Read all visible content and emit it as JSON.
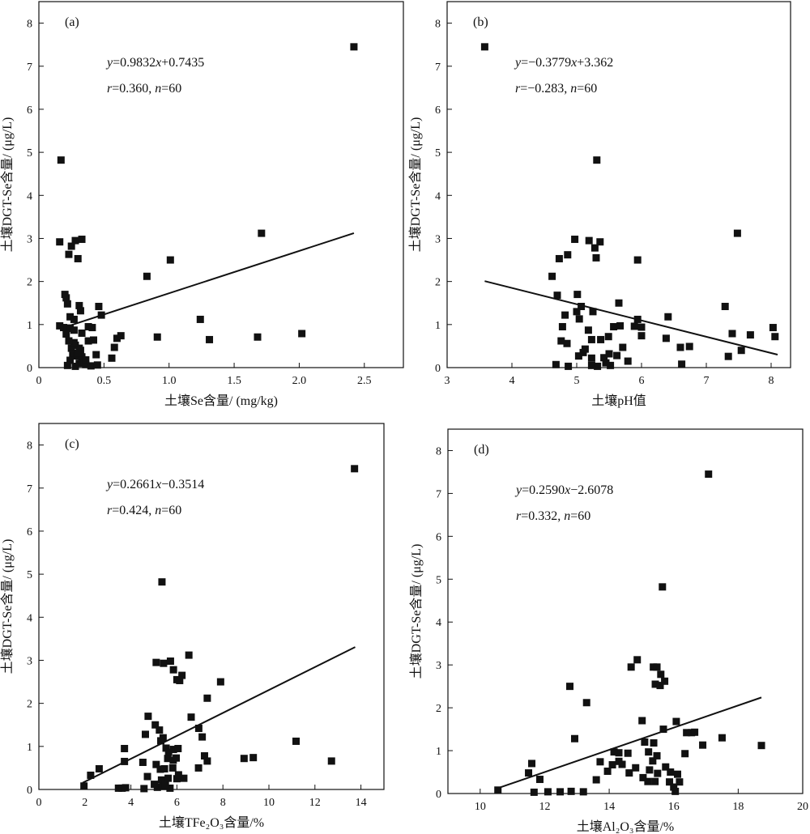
{
  "chart_data": [
    {
      "type": "scatter",
      "panel": "(a)",
      "xlabel": "土壤Se含量/ (mg/kg)",
      "ylabel": "土壤DGT-Se含量/ (μg/L)",
      "xlim": [
        0,
        2.8
      ],
      "ylim": [
        0,
        8.5
      ],
      "xticks": [
        0,
        0.5,
        1.0,
        1.5,
        2.0,
        2.5
      ],
      "xtick_labels": [
        "0",
        "0.5",
        "1.0",
        "1.5",
        "2.0",
        "2.5"
      ],
      "yticks": [
        0,
        1,
        2,
        3,
        4,
        5,
        6,
        7,
        8
      ],
      "ytick_labels": [
        "0",
        "1",
        "2",
        "3",
        "4",
        "5",
        "6",
        "7",
        "8"
      ],
      "annotation": {
        "equation": "y=0.9832x+0.7435",
        "stats": "r=0.360, n=60"
      },
      "fit_line": {
        "slope": 0.9832,
        "intercept": 0.7435,
        "x_range": [
          0.25,
          2.42
        ]
      },
      "points": [
        [
          0.17,
          4.82
        ],
        [
          2.42,
          7.45
        ],
        [
          0.16,
          2.92
        ],
        [
          0.25,
          2.82
        ],
        [
          0.28,
          2.95
        ],
        [
          0.33,
          2.98
        ],
        [
          0.23,
          2.63
        ],
        [
          0.3,
          2.53
        ],
        [
          1.71,
          3.12
        ],
        [
          1.01,
          2.5
        ],
        [
          0.83,
          2.12
        ],
        [
          0.2,
          1.7
        ],
        [
          0.21,
          1.62
        ],
        [
          0.22,
          1.48
        ],
        [
          0.31,
          1.44
        ],
        [
          0.32,
          1.32
        ],
        [
          0.46,
          1.42
        ],
        [
          0.48,
          1.22
        ],
        [
          0.24,
          1.18
        ],
        [
          0.27,
          1.12
        ],
        [
          0.16,
          0.97
        ],
        [
          0.19,
          0.93
        ],
        [
          0.22,
          0.91
        ],
        [
          0.24,
          0.92
        ],
        [
          0.27,
          0.87
        ],
        [
          0.21,
          0.78
        ],
        [
          0.38,
          0.95
        ],
        [
          0.41,
          0.93
        ],
        [
          0.33,
          0.8
        ],
        [
          0.38,
          0.62
        ],
        [
          0.42,
          0.64
        ],
        [
          0.28,
          0.52
        ],
        [
          0.31,
          0.45
        ],
        [
          0.32,
          0.4
        ],
        [
          0.25,
          0.45
        ],
        [
          0.26,
          0.32
        ],
        [
          0.29,
          0.27
        ],
        [
          0.33,
          0.25
        ],
        [
          0.24,
          0.17
        ],
        [
          0.31,
          0.1
        ],
        [
          0.36,
          0.07
        ],
        [
          0.28,
          0.03
        ],
        [
          0.4,
          0.04
        ],
        [
          0.22,
          0.05
        ],
        [
          0.45,
          0.06
        ],
        [
          0.6,
          0.68
        ],
        [
          0.63,
          0.74
        ],
        [
          0.58,
          0.47
        ],
        [
          0.56,
          0.22
        ],
        [
          0.91,
          0.71
        ],
        [
          1.24,
          1.12
        ],
        [
          1.31,
          0.65
        ],
        [
          1.68,
          0.71
        ],
        [
          2.02,
          0.79
        ],
        [
          0.35,
          0.13
        ],
        [
          0.27,
          0.58
        ],
        [
          0.44,
          0.3
        ],
        [
          0.3,
          0.33
        ],
        [
          0.36,
          0.18
        ],
        [
          0.23,
          0.62
        ]
      ]
    },
    {
      "type": "scatter",
      "panel": "(b)",
      "xlabel": "土壤pH值",
      "ylabel": "土壤DGT-Se含量/ (μg/L)",
      "xlim": [
        3,
        8.3
      ],
      "ylim": [
        0,
        8.5
      ],
      "xticks": [
        3,
        4,
        5,
        6,
        7,
        8
      ],
      "xtick_labels": [
        "3",
        "4",
        "5",
        "6",
        "7",
        "8"
      ],
      "yticks": [
        0,
        1,
        2,
        3,
        4,
        5,
        6,
        7,
        8
      ],
      "ytick_labels": [
        "0",
        "1",
        "2",
        "3",
        "4",
        "5",
        "6",
        "7",
        "8"
      ],
      "annotation": {
        "equation": "y=−0.3779x+3.362",
        "stats": "r=−0.283, n=60"
      },
      "fit_line": {
        "slope": -0.3779,
        "intercept": 3.362,
        "x_range": [
          3.58,
          8.1
        ]
      },
      "points": [
        [
          3.58,
          7.45
        ],
        [
          5.31,
          4.82
        ],
        [
          7.48,
          3.12
        ],
        [
          4.97,
          2.98
        ],
        [
          5.19,
          2.95
        ],
        [
          5.36,
          2.92
        ],
        [
          5.28,
          2.78
        ],
        [
          4.86,
          2.62
        ],
        [
          4.73,
          2.53
        ],
        [
          5.3,
          2.55
        ],
        [
          5.94,
          2.5
        ],
        [
          4.62,
          2.12
        ],
        [
          5.01,
          1.7
        ],
        [
          4.7,
          1.68
        ],
        [
          5.65,
          1.5
        ],
        [
          5.07,
          1.42
        ],
        [
          7.29,
          1.42
        ],
        [
          5.0,
          1.3
        ],
        [
          5.25,
          1.3
        ],
        [
          4.82,
          1.22
        ],
        [
          6.41,
          1.18
        ],
        [
          5.94,
          1.12
        ],
        [
          5.04,
          1.13
        ],
        [
          4.78,
          0.95
        ],
        [
          5.57,
          0.95
        ],
        [
          5.67,
          0.97
        ],
        [
          6.0,
          0.94
        ],
        [
          7.4,
          0.79
        ],
        [
          7.68,
          0.76
        ],
        [
          8.03,
          0.93
        ],
        [
          8.06,
          0.72
        ],
        [
          5.18,
          0.87
        ],
        [
          5.89,
          0.96
        ],
        [
          6.0,
          0.74
        ],
        [
          6.38,
          0.68
        ],
        [
          5.23,
          0.65
        ],
        [
          5.37,
          0.65
        ],
        [
          5.49,
          0.72
        ],
        [
          4.76,
          0.62
        ],
        [
          4.85,
          0.56
        ],
        [
          6.6,
          0.47
        ],
        [
          6.74,
          0.49
        ],
        [
          7.54,
          0.4
        ],
        [
          7.34,
          0.26
        ],
        [
          5.71,
          0.47
        ],
        [
          5.5,
          0.32
        ],
        [
          5.1,
          0.35
        ],
        [
          5.03,
          0.27
        ],
        [
          5.23,
          0.22
        ],
        [
          5.42,
          0.23
        ],
        [
          5.62,
          0.28
        ],
        [
          4.68,
          0.07
        ],
        [
          4.87,
          0.03
        ],
        [
          5.23,
          0.05
        ],
        [
          5.32,
          0.03
        ],
        [
          5.52,
          0.05
        ],
        [
          6.62,
          0.08
        ],
        [
          5.13,
          0.43
        ],
        [
          5.79,
          0.15
        ],
        [
          5.45,
          0.11
        ]
      ]
    },
    {
      "type": "scatter",
      "panel": "(c)",
      "xlabel": "土壤TFe₂O₃含量/%",
      "ylabel": "土壤DGT-Se含量/ (μg/L)",
      "xlim": [
        0,
        15
      ],
      "ylim": [
        0,
        8.5
      ],
      "xticks": [
        0,
        2,
        4,
        6,
        8,
        10,
        12,
        14
      ],
      "xtick_labels": [
        "0",
        "2",
        "4",
        "6",
        "8",
        "10",
        "12",
        "14"
      ],
      "yticks": [
        0,
        1,
        2,
        3,
        4,
        5,
        6,
        7,
        8
      ],
      "ytick_labels": [
        "0",
        "1",
        "2",
        "3",
        "4",
        "5",
        "6",
        "7",
        "8"
      ],
      "annotation": {
        "equation": "y=0.2661x−0.3514",
        "stats": "r=0.424, n=60"
      },
      "fit_line": {
        "slope": 0.2661,
        "intercept": -0.3514,
        "x_range": [
          1.9,
          13.75
        ]
      },
      "points": [
        [
          13.72,
          7.45
        ],
        [
          5.35,
          4.82
        ],
        [
          6.52,
          3.12
        ],
        [
          5.1,
          2.95
        ],
        [
          5.42,
          2.93
        ],
        [
          5.72,
          2.98
        ],
        [
          5.85,
          2.78
        ],
        [
          6.22,
          2.65
        ],
        [
          6.0,
          2.55
        ],
        [
          7.9,
          2.5
        ],
        [
          6.12,
          2.53
        ],
        [
          7.32,
          2.12
        ],
        [
          4.75,
          1.7
        ],
        [
          6.62,
          1.68
        ],
        [
          5.06,
          1.5
        ],
        [
          6.95,
          1.42
        ],
        [
          4.63,
          1.28
        ],
        [
          5.24,
          1.38
        ],
        [
          5.4,
          1.2
        ],
        [
          7.1,
          1.22
        ],
        [
          5.3,
          1.13
        ],
        [
          11.18,
          1.12
        ],
        [
          3.72,
          0.95
        ],
        [
          5.53,
          0.96
        ],
        [
          5.85,
          0.93
        ],
        [
          6.05,
          0.95
        ],
        [
          5.64,
          0.86
        ],
        [
          9.32,
          0.74
        ],
        [
          8.92,
          0.72
        ],
        [
          7.2,
          0.78
        ],
        [
          7.32,
          0.66
        ],
        [
          12.72,
          0.66
        ],
        [
          3.72,
          0.65
        ],
        [
          4.52,
          0.63
        ],
        [
          5.6,
          0.72
        ],
        [
          5.97,
          0.73
        ],
        [
          2.62,
          0.48
        ],
        [
          5.28,
          0.47
        ],
        [
          5.46,
          0.48
        ],
        [
          5.82,
          0.5
        ],
        [
          6.94,
          0.5
        ],
        [
          2.25,
          0.33
        ],
        [
          4.72,
          0.3
        ],
        [
          5.33,
          0.22
        ],
        [
          5.62,
          0.26
        ],
        [
          6.0,
          0.25
        ],
        [
          6.3,
          0.26
        ],
        [
          1.96,
          0.08
        ],
        [
          3.46,
          0.03
        ],
        [
          3.62,
          0.03
        ],
        [
          3.77,
          0.04
        ],
        [
          4.57,
          0.02
        ],
        [
          5.15,
          0.05
        ],
        [
          5.4,
          0.07
        ],
        [
          5.7,
          0.03
        ],
        [
          5.02,
          0.12
        ],
        [
          5.84,
          0.68
        ],
        [
          5.5,
          0.12
        ],
        [
          6.07,
          0.34
        ],
        [
          5.1,
          0.58
        ]
      ]
    },
    {
      "type": "scatter",
      "panel": "(d)",
      "xlabel": "土壤Al₂O₃含量/%",
      "ylabel": "土壤DGT-Se含量/ (μg/L)",
      "xlim": [
        9,
        20
      ],
      "ylim": [
        0,
        8.5
      ],
      "xticks": [
        10,
        12,
        14,
        16,
        18,
        20
      ],
      "xtick_labels": [
        "10",
        "12",
        "14",
        "16",
        "18",
        "20"
      ],
      "yticks": [
        0,
        1,
        2,
        3,
        4,
        5,
        6,
        7,
        8
      ],
      "ytick_labels": [
        "0",
        "1",
        "2",
        "3",
        "4",
        "5",
        "6",
        "7",
        "8"
      ],
      "annotation": {
        "equation": "y=0.2590x−2.6078",
        "stats": "r=0.332, n=60"
      },
      "fit_line": {
        "slope": 0.259,
        "intercept": -2.6078,
        "x_range": [
          10.5,
          18.72
        ]
      },
      "points": [
        [
          17.08,
          7.45
        ],
        [
          15.65,
          4.82
        ],
        [
          14.87,
          3.12
        ],
        [
          14.68,
          2.95
        ],
        [
          15.37,
          2.95
        ],
        [
          15.48,
          2.95
        ],
        [
          15.6,
          2.78
        ],
        [
          15.72,
          2.62
        ],
        [
          15.43,
          2.55
        ],
        [
          15.58,
          2.52
        ],
        [
          12.78,
          2.5
        ],
        [
          13.3,
          2.12
        ],
        [
          15.02,
          1.7
        ],
        [
          16.08,
          1.68
        ],
        [
          15.68,
          1.5
        ],
        [
          16.55,
          1.42
        ],
        [
          16.65,
          1.43
        ],
        [
          16.4,
          1.42
        ],
        [
          17.5,
          1.3
        ],
        [
          12.93,
          1.28
        ],
        [
          15.1,
          1.2
        ],
        [
          15.38,
          1.18
        ],
        [
          18.72,
          1.12
        ],
        [
          16.9,
          1.13
        ],
        [
          14.3,
          0.95
        ],
        [
          14.15,
          0.97
        ],
        [
          14.58,
          0.94
        ],
        [
          15.22,
          0.97
        ],
        [
          16.35,
          0.93
        ],
        [
          13.72,
          0.74
        ],
        [
          14.3,
          0.75
        ],
        [
          14.1,
          0.67
        ],
        [
          14.4,
          0.68
        ],
        [
          11.6,
          0.7
        ],
        [
          15.48,
          0.88
        ],
        [
          15.35,
          0.76
        ],
        [
          13.95,
          0.52
        ],
        [
          15.75,
          0.62
        ],
        [
          15.9,
          0.5
        ],
        [
          11.5,
          0.48
        ],
        [
          16.12,
          0.45
        ],
        [
          14.62,
          0.48
        ],
        [
          13.6,
          0.32
        ],
        [
          11.85,
          0.33
        ],
        [
          15.42,
          0.28
        ],
        [
          15.87,
          0.27
        ],
        [
          16.18,
          0.27
        ],
        [
          15.2,
          0.28
        ],
        [
          10.55,
          0.08
        ],
        [
          11.67,
          0.03
        ],
        [
          12.1,
          0.04
        ],
        [
          12.48,
          0.04
        ],
        [
          12.82,
          0.05
        ],
        [
          13.2,
          0.04
        ],
        [
          16.05,
          0.05
        ],
        [
          15.05,
          0.37
        ],
        [
          15.5,
          0.47
        ],
        [
          14.82,
          0.6
        ],
        [
          16.0,
          0.15
        ],
        [
          15.25,
          0.55
        ]
      ]
    }
  ]
}
